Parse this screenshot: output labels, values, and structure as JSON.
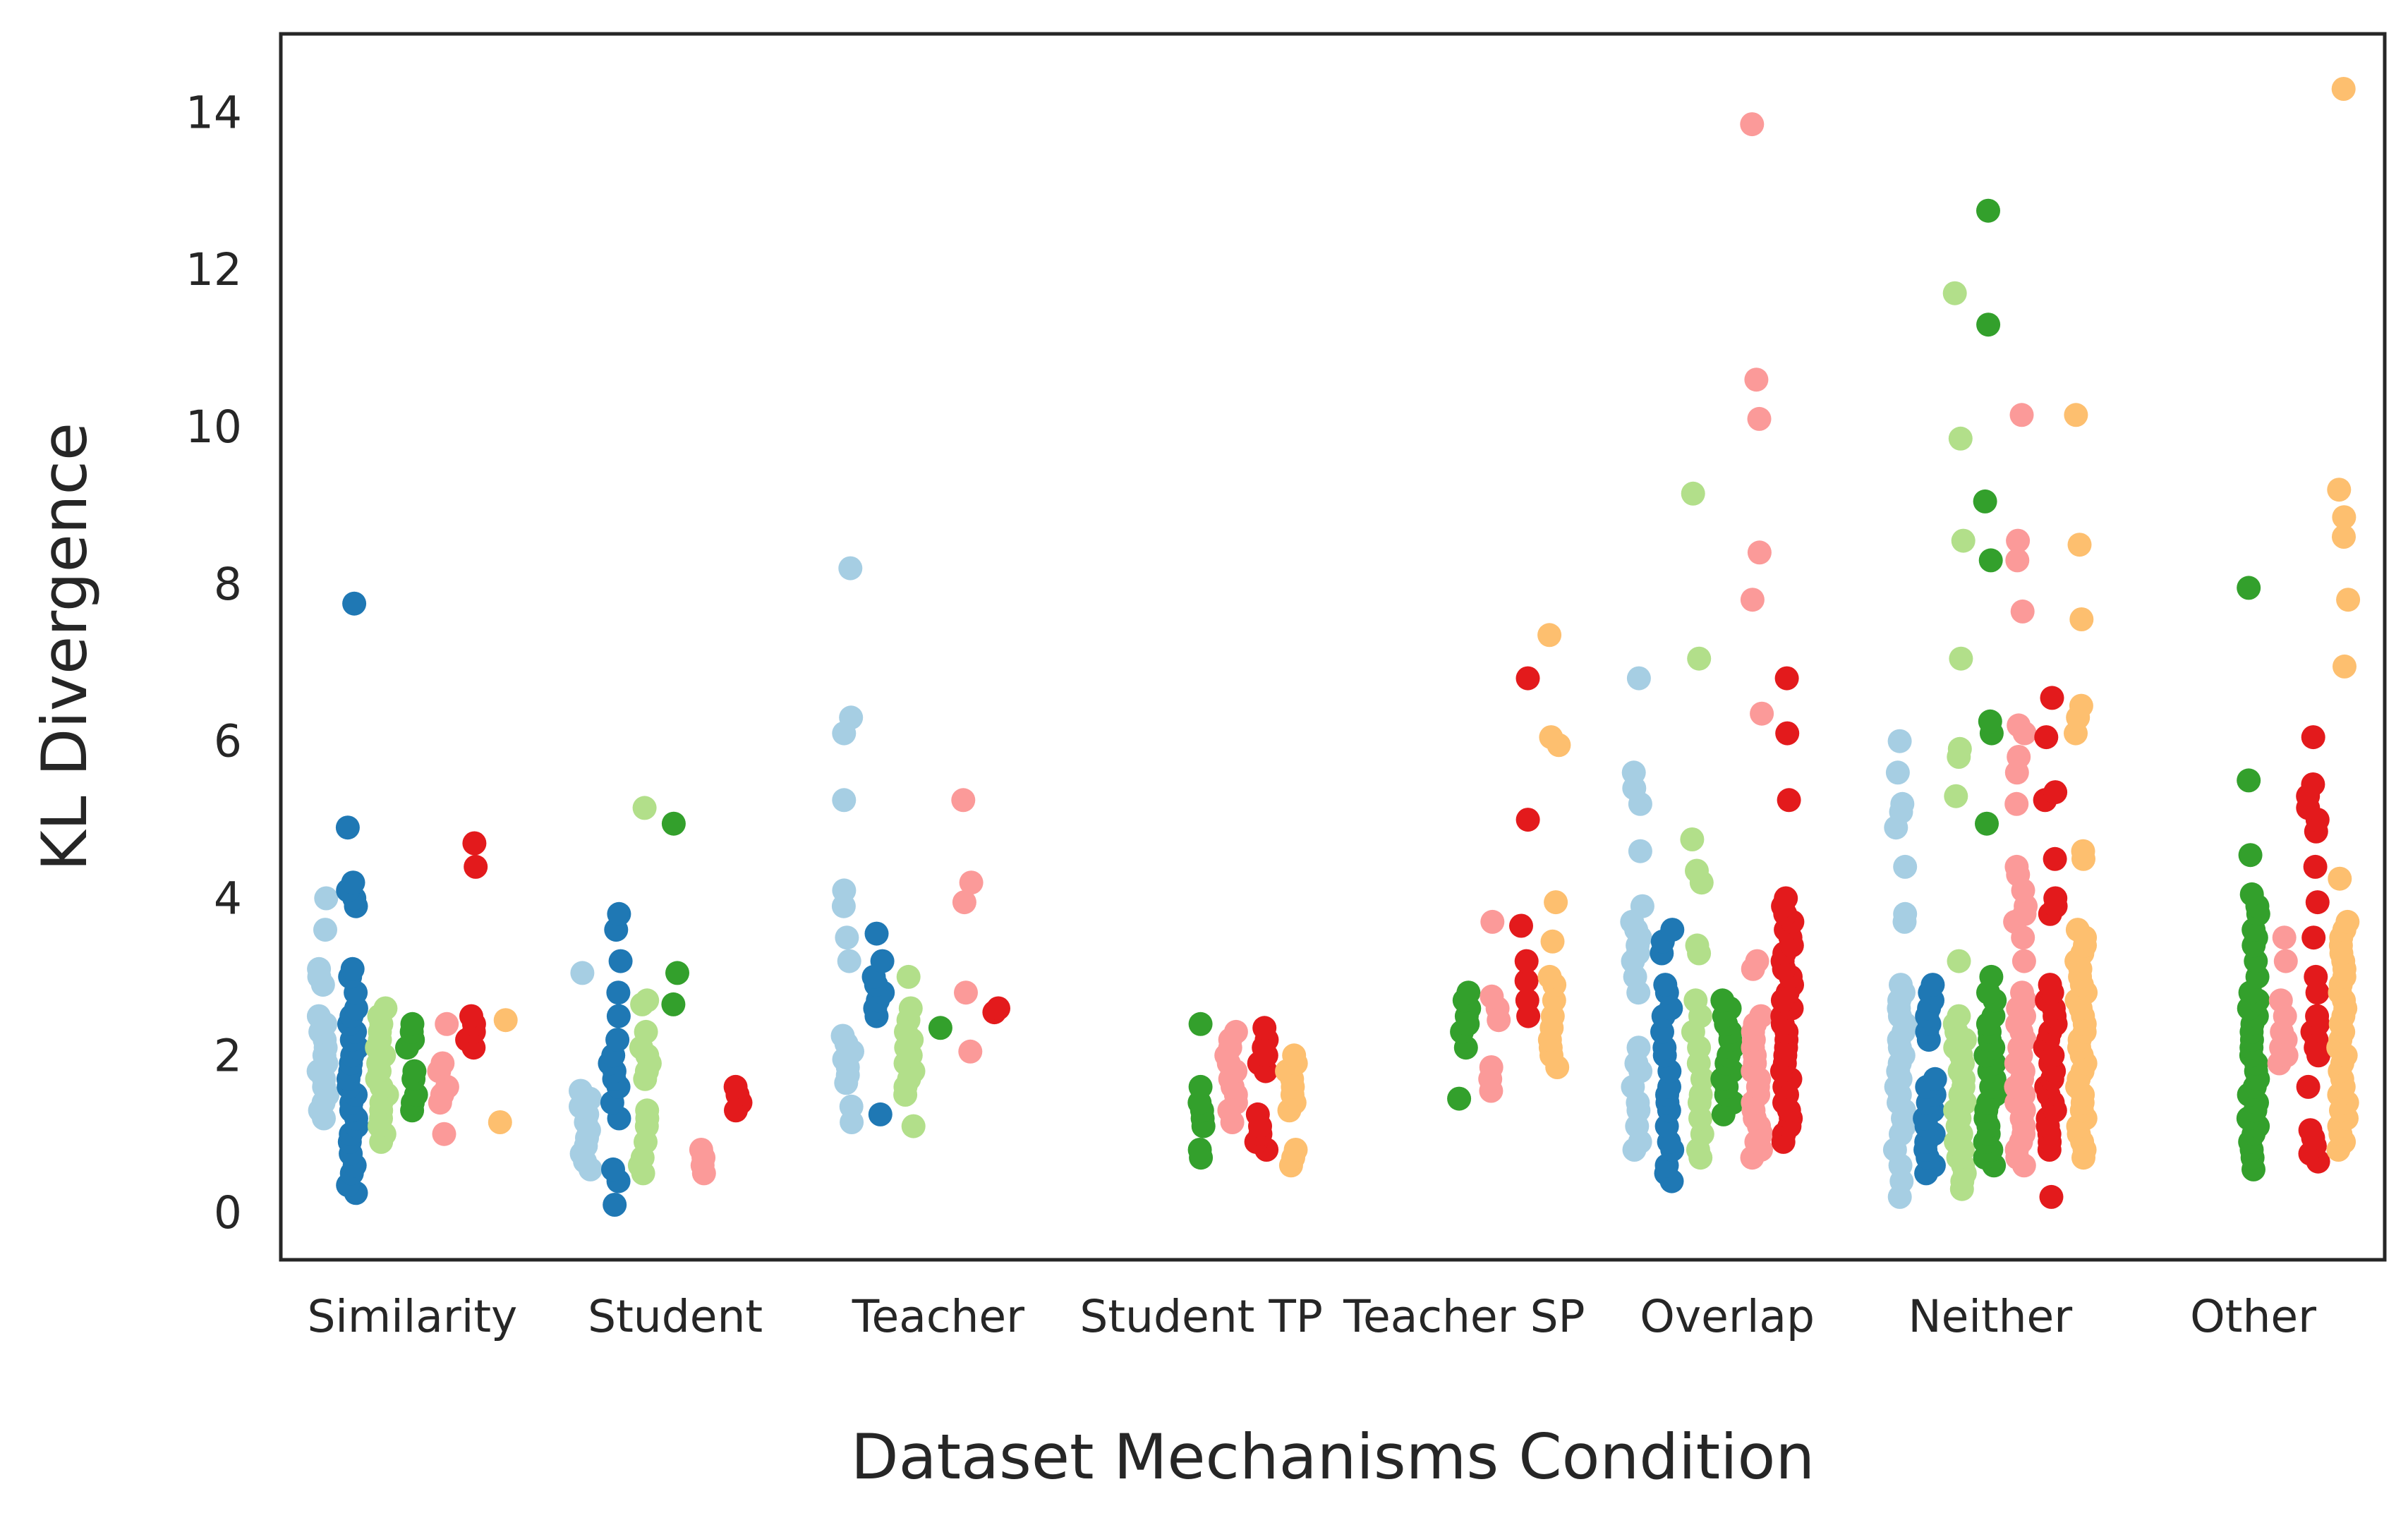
{
  "chart_data": {
    "type": "scatter",
    "style": "strip plot (jittered categorical scatter), dodged by hue",
    "xlabel": "Dataset Mechanisms Condition",
    "ylabel": "KL Divergence",
    "ylim": [
      -0.6,
      15.0
    ],
    "yticks": [
      0,
      2,
      4,
      6,
      8,
      10,
      12,
      14
    ],
    "grid": false,
    "legend": "none",
    "categories": [
      "Similarity",
      "Student",
      "Teacher",
      "Student TP",
      "Teacher SP",
      "Overlap",
      "Neither",
      "Other"
    ],
    "hue_colors": [
      "#a6cee3",
      "#1f78b4",
      "#b2df8a",
      "#33a02c",
      "#fb9a99",
      "#e31a1c",
      "#fdbf6f"
    ],
    "groups": [
      [
        [
          1.2,
          1.3,
          1.4,
          1.5,
          1.6,
          1.7,
          1.8,
          1.9,
          2.0,
          2.1,
          2.2,
          2.3,
          2.4,
          2.5,
          2.9,
          3.0,
          3.1,
          3.6,
          4.0
        ],
        [
          0.25,
          0.35,
          0.5,
          0.6,
          0.75,
          0.9,
          1.0,
          1.1,
          1.2,
          1.3,
          1.4,
          1.5,
          1.6,
          1.7,
          1.8,
          1.9,
          2.0,
          2.1,
          2.2,
          2.3,
          2.4,
          2.5,
          2.6,
          2.8,
          3.0,
          3.1,
          3.9,
          4.0,
          4.1,
          4.2,
          4.9,
          7.75
        ],
        [
          0.9,
          1.0,
          1.1,
          1.2,
          1.3,
          1.4,
          1.5,
          1.6,
          1.7,
          1.8,
          1.9,
          2.0,
          2.1,
          2.2,
          2.3,
          2.4,
          2.5,
          2.6
        ],
        [
          1.3,
          1.4,
          1.5,
          1.7,
          1.8,
          2.1,
          2.2,
          2.3,
          2.4
        ],
        [
          1.0,
          1.4,
          1.5,
          1.6,
          1.8,
          1.9,
          2.4
        ],
        [
          2.1,
          2.2,
          2.3,
          2.4,
          2.5,
          4.4,
          4.7
        ],
        [
          1.15,
          2.45
        ]
      ],
      [
        [
          0.55,
          0.65,
          0.75,
          0.85,
          0.95,
          1.05,
          1.15,
          1.25,
          1.35,
          1.45,
          1.55,
          3.05
        ],
        [
          0.1,
          0.4,
          0.55,
          1.2,
          1.4,
          1.6,
          1.7,
          1.8,
          1.9,
          2.0,
          2.2,
          2.5,
          2.8,
          3.2,
          3.6,
          3.8
        ],
        [
          0.5,
          0.6,
          0.7,
          0.9,
          1.1,
          1.2,
          1.3,
          1.7,
          1.8,
          1.9,
          2.0,
          2.1,
          2.3,
          2.65,
          2.7,
          5.15
        ],
        [
          2.65,
          3.05,
          4.95
        ],
        [
          0.5,
          0.6,
          0.7,
          0.8
        ],
        [
          1.3,
          1.4,
          1.5,
          1.6
        ]
      ],
      [
        [
          1.15,
          1.35,
          1.65,
          1.75,
          1.85,
          1.95,
          2.05,
          2.15,
          2.25,
          3.2,
          3.5,
          3.9,
          4.1,
          5.25,
          6.1,
          6.3,
          8.2
        ],
        [
          1.25,
          2.5,
          2.6,
          2.7,
          2.8,
          2.9,
          3.0,
          3.2,
          3.55
        ],
        [
          1.1,
          1.5,
          1.6,
          1.7,
          1.8,
          1.9,
          2.0,
          2.1,
          2.2,
          2.3,
          2.45,
          2.6,
          3.0
        ],
        [
          2.35
        ],
        [
          2.05,
          2.8,
          3.95,
          4.2,
          5.25
        ],
        [
          2.55,
          2.6
        ]
      ],
      [
        [
          0.7,
          0.8,
          1.1,
          1.2,
          1.3,
          1.4,
          1.6,
          2.4
        ],
        [
          1.15,
          1.3,
          1.4,
          1.5,
          1.6,
          1.7,
          1.8,
          1.9,
          2.0,
          2.1,
          2.2,
          2.3
        ],
        [
          0.8,
          0.9,
          1.0,
          1.1,
          1.25,
          1.8,
          1.9,
          2.0,
          2.1,
          2.2,
          2.35
        ],
        [
          0.6,
          0.7,
          0.8,
          1.3,
          1.4,
          1.5,
          1.6,
          1.7,
          1.8,
          1.9,
          2.0
        ]
      ],
      [
        [
          1.45,
          2.1,
          2.3,
          2.4,
          2.5,
          2.6,
          2.7,
          2.8
        ],
        [
          1.55,
          1.7,
          1.85,
          2.45,
          2.6,
          2.75,
          3.7
        ],
        [
          2.5,
          2.7,
          2.95,
          3.2,
          3.65,
          5.0,
          6.8
        ],
        [
          1.85,
          2.0,
          2.1,
          2.2,
          2.35,
          2.5,
          2.7,
          2.9,
          3.0,
          3.45,
          3.95,
          5.95,
          6.05,
          7.35
        ]
      ],
      [
        [
          0.8,
          0.9,
          1.1,
          1.3,
          1.4,
          1.6,
          1.8,
          1.9,
          2.1,
          2.8,
          3.0,
          3.2,
          3.3,
          3.4,
          3.5,
          3.6,
          3.7,
          3.9,
          4.6,
          5.2,
          5.4,
          5.6,
          6.8
        ],
        [
          0.4,
          0.5,
          0.6,
          0.8,
          0.9,
          1.1,
          1.3,
          1.4,
          1.5,
          1.6,
          1.8,
          2.0,
          2.1,
          2.3,
          2.5,
          2.6,
          2.8,
          2.9,
          3.3,
          3.45,
          3.6
        ],
        [
          0.7,
          0.8,
          1.0,
          1.2,
          1.4,
          1.5,
          1.7,
          1.9,
          2.1,
          2.3,
          2.5,
          2.7,
          3.3,
          3.4,
          4.2,
          4.35,
          4.75,
          7.05,
          9.15
        ],
        [
          1.25,
          1.4,
          1.5,
          1.6,
          1.7,
          1.8,
          1.9,
          2.0,
          2.1,
          2.2,
          2.3,
          2.4,
          2.5,
          2.6,
          2.7
        ],
        [
          0.7,
          0.8,
          0.9,
          1.0,
          1.1,
          1.2,
          1.3,
          1.4,
          1.5,
          1.6,
          1.7,
          1.8,
          1.9,
          2.0,
          2.1,
          2.2,
          2.3,
          2.4,
          2.5,
          3.1,
          3.2,
          6.35,
          7.8,
          8.4,
          10.1,
          10.6,
          13.85
        ],
        [
          0.9,
          1.0,
          1.1,
          1.2,
          1.3,
          1.4,
          1.5,
          1.6,
          1.7,
          1.8,
          1.9,
          2.0,
          2.1,
          2.2,
          2.3,
          2.4,
          2.5,
          2.6,
          2.7,
          2.8,
          2.9,
          3.0,
          3.1,
          3.2,
          3.3,
          3.4,
          3.5,
          3.6,
          3.7,
          3.8,
          3.9,
          4.0,
          5.25,
          6.1,
          6.8
        ]
      ],
      [
        [
          0.2,
          0.4,
          0.6,
          0.8,
          1.0,
          1.1,
          1.2,
          1.3,
          1.4,
          1.5,
          1.6,
          1.7,
          1.8,
          1.9,
          2.0,
          2.1,
          2.2,
          2.3,
          2.4,
          2.5,
          2.6,
          2.7,
          2.8,
          2.9,
          3.7,
          3.8,
          4.4,
          4.9,
          5.1,
          5.2,
          5.6,
          6.0
        ],
        [
          0.5,
          0.6,
          0.7,
          0.8,
          0.9,
          1.0,
          1.1,
          1.2,
          1.3,
          1.4,
          1.5,
          1.6,
          1.7,
          2.2,
          2.3,
          2.4,
          2.5,
          2.6,
          2.7,
          2.8,
          2.9
        ],
        [
          0.3,
          0.4,
          0.5,
          0.6,
          0.7,
          0.8,
          0.9,
          1.0,
          1.1,
          1.2,
          1.3,
          1.4,
          1.5,
          1.6,
          1.7,
          1.8,
          1.9,
          2.0,
          2.1,
          2.2,
          2.3,
          2.4,
          2.5,
          3.2,
          5.3,
          5.8,
          5.9,
          7.05,
          8.55,
          9.85,
          11.7
        ],
        [
          0.6,
          0.7,
          0.8,
          0.9,
          1.0,
          1.1,
          1.2,
          1.3,
          1.4,
          1.5,
          1.6,
          1.7,
          1.8,
          1.9,
          2.0,
          2.1,
          2.2,
          2.3,
          2.4,
          2.5,
          2.7,
          2.8,
          3.0,
          4.95,
          6.1,
          6.25,
          8.3,
          9.05,
          11.3,
          12.75
        ],
        [
          0.6,
          0.7,
          0.8,
          0.9,
          1.0,
          1.1,
          1.2,
          1.3,
          1.4,
          1.5,
          1.6,
          1.7,
          1.8,
          1.9,
          2.0,
          2.1,
          2.2,
          2.3,
          2.4,
          2.5,
          2.6,
          2.7,
          2.8,
          3.2,
          3.5,
          3.7,
          3.8,
          3.9,
          4.1,
          4.3,
          4.4,
          5.2,
          5.6,
          5.8,
          6.1,
          6.2,
          7.65,
          8.3,
          8.55,
          10.15
        ],
        [
          0.2,
          0.8,
          0.9,
          1.0,
          1.1,
          1.2,
          1.3,
          1.4,
          1.5,
          1.6,
          1.7,
          1.8,
          1.9,
          2.0,
          2.1,
          2.2,
          2.3,
          2.4,
          2.5,
          2.6,
          2.7,
          2.8,
          2.9,
          3.8,
          3.9,
          4.0,
          4.5,
          5.25,
          5.35,
          6.05,
          6.55
        ],
        [
          0.7,
          0.8,
          0.9,
          1.0,
          1.1,
          1.2,
          1.3,
          1.4,
          1.5,
          1.6,
          1.7,
          1.8,
          1.9,
          2.0,
          2.1,
          2.2,
          2.3,
          2.4,
          2.5,
          2.6,
          2.7,
          2.8,
          2.9,
          3.0,
          3.1,
          3.2,
          3.3,
          3.4,
          3.5,
          3.6,
          4.5,
          4.6,
          6.1,
          6.3,
          6.45,
          7.55,
          8.5,
          10.15
        ]
      ],
      [
        [
          0.55,
          0.7,
          0.8,
          0.9,
          1.0,
          1.1,
          1.2,
          1.3,
          1.4,
          1.5,
          1.6,
          1.7,
          1.8,
          1.9,
          2.0,
          2.1,
          2.2,
          2.3,
          2.4,
          2.5,
          2.6,
          2.7,
          2.8,
          3.0,
          3.2,
          3.4,
          3.5,
          3.6,
          3.8,
          3.9,
          4.05,
          4.55,
          5.5,
          7.95
        ],
        [
          1.9,
          2.0,
          2.1,
          2.2,
          2.3,
          2.5,
          2.7,
          3.2,
          3.5
        ],
        [
          0.65,
          0.75,
          0.85,
          0.95,
          1.05,
          1.6,
          2.0,
          2.1,
          2.2,
          2.3,
          2.4,
          2.5,
          2.8,
          3.0,
          3.5,
          3.95,
          4.4,
          4.85,
          5.0,
          5.15,
          5.3,
          5.45,
          6.05
        ],
        [
          0.8,
          0.9,
          1.0,
          1.1,
          1.2,
          1.3,
          1.4,
          1.5,
          1.6,
          1.7,
          1.8,
          1.9,
          2.0,
          2.1,
          2.2,
          2.3,
          2.4,
          2.5,
          2.6,
          2.7,
          2.8,
          2.9,
          3.0,
          3.1,
          3.2,
          3.3,
          3.4,
          3.5,
          3.6,
          3.7,
          4.25,
          6.95,
          7.8,
          8.6,
          8.85,
          9.2,
          14.3
        ]
      ]
    ],
    "group_hues": [
      [
        0,
        1,
        2,
        3,
        4,
        5,
        6
      ],
      [
        0,
        1,
        2,
        3,
        4,
        5
      ],
      [
        0,
        1,
        2,
        3,
        4,
        5
      ],
      [
        3,
        4,
        5,
        6
      ],
      [
        3,
        4,
        5,
        6
      ],
      [
        0,
        1,
        2,
        3,
        4,
        5
      ],
      [
        0,
        1,
        2,
        3,
        4,
        5,
        6
      ],
      [
        3,
        4,
        5,
        6
      ]
    ]
  }
}
